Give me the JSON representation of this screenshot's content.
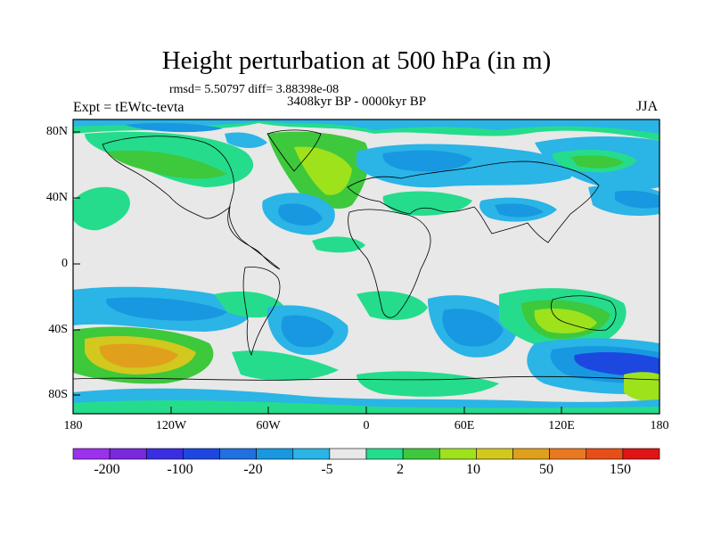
{
  "title": "Height perturbation at 500 hPa (in m)",
  "stats": "rmsd= 5.50797 diff= 3.88398e-08",
  "experiment": "Expt = tEWtc-tevta",
  "period": "3408kyr BP - 0000kyr BP",
  "season": "JJA",
  "latitude_labels": [
    "80N",
    "40N",
    "0",
    "40S",
    "80S"
  ],
  "longitude_labels": [
    "180",
    "120W",
    "60W",
    "0",
    "60E",
    "120E",
    "180"
  ],
  "colorbar": {
    "colors": [
      "#9b30ee",
      "#7a28dd",
      "#3a2de2",
      "#1c48e0",
      "#1f70e0",
      "#1898e0",
      "#2bb4e6",
      "#e8e8e8",
      "#25dc8c",
      "#3ec83c",
      "#9ee21c",
      "#d2c81e",
      "#e0a01c",
      "#ea7820",
      "#e84e18",
      "#e01414"
    ],
    "labels": [
      "-200",
      "-100",
      "-20",
      "-5",
      "2",
      "10",
      "50",
      "150"
    ]
  }
}
